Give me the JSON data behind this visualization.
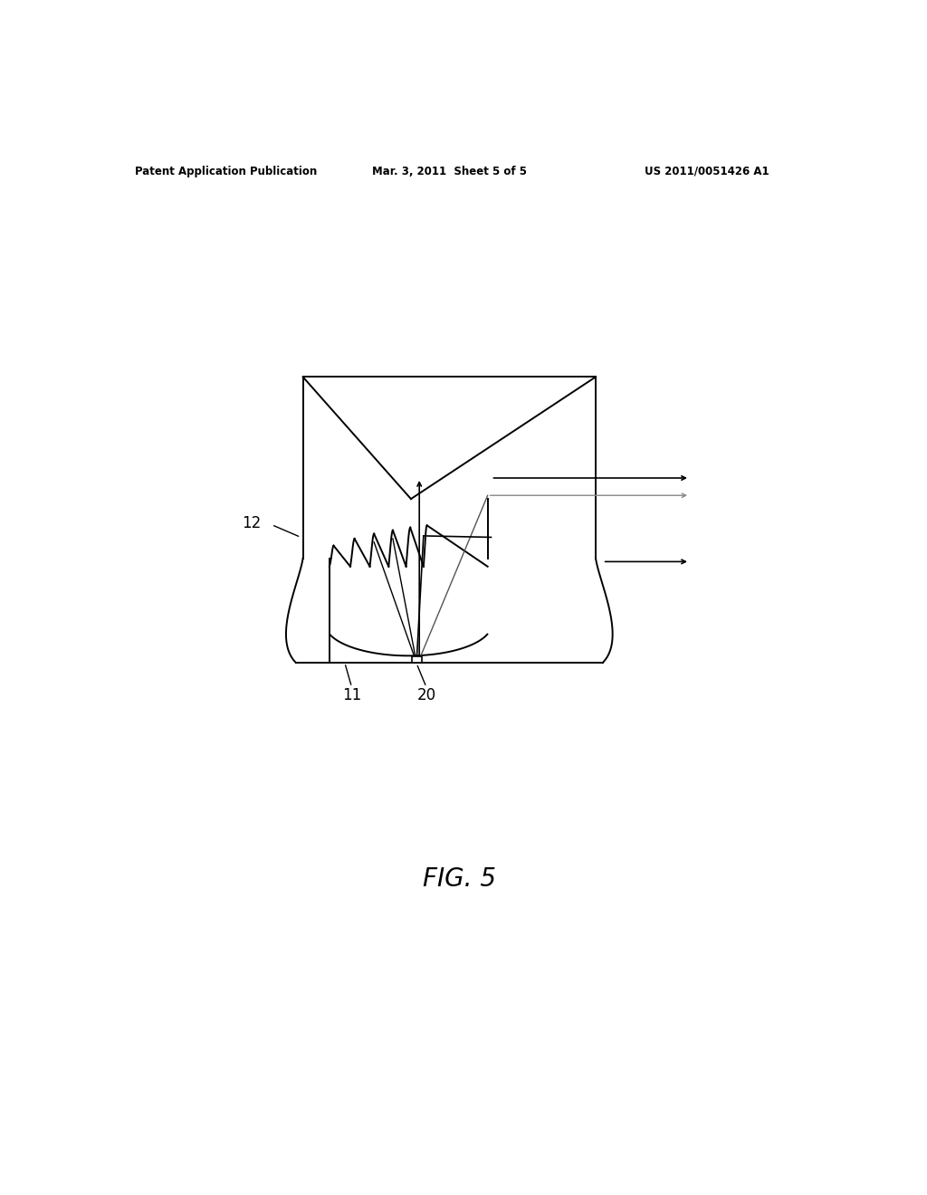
{
  "bg_color": "#ffffff",
  "line_color": "#000000",
  "fig_label": "FIG. 5",
  "header_left": "Patent Application Publication",
  "header_mid": "Mar. 3, 2011  Sheet 5 of 5",
  "header_right": "US 2011/0051426 A1",
  "label_12": "12",
  "label_11": "11",
  "label_20": "20",
  "fig_width": 10.24,
  "fig_height": 13.2,
  "dpi": 100,
  "lw": 1.4,
  "gray_lw": 1.0
}
